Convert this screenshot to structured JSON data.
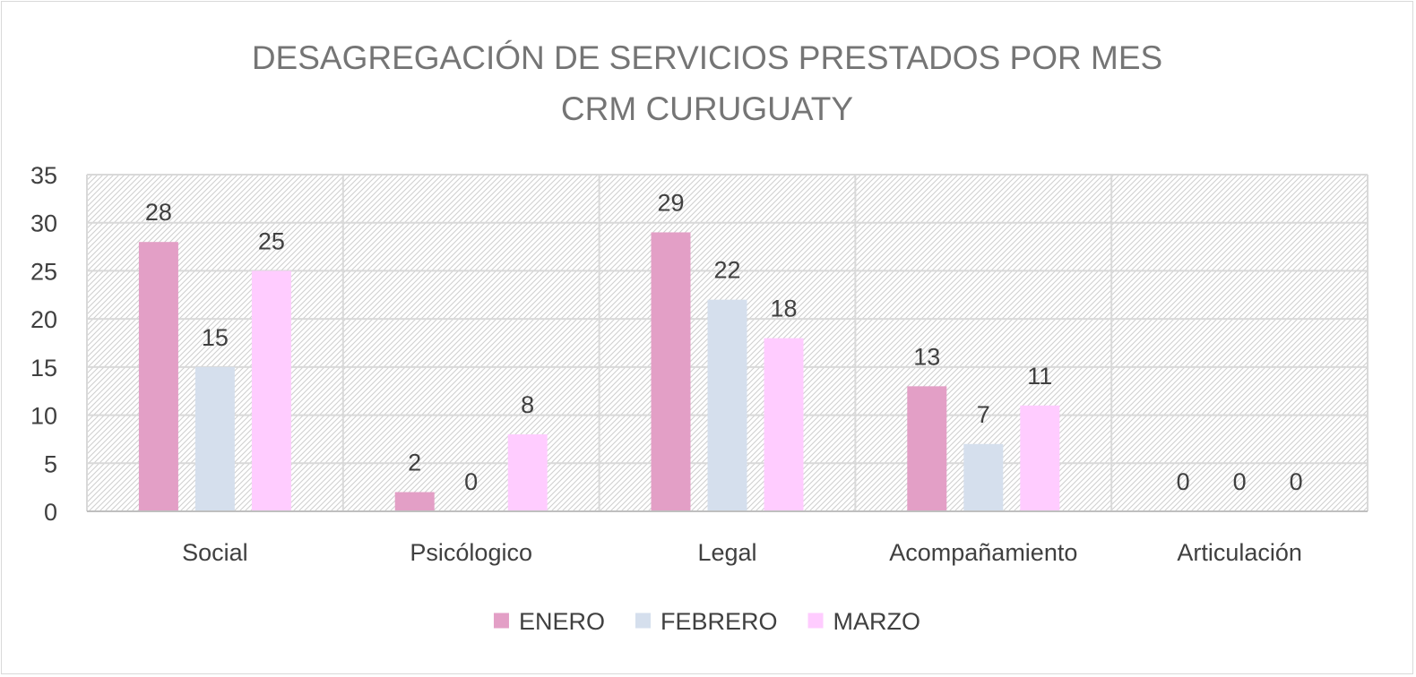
{
  "chart_data": {
    "type": "bar",
    "title": "DESAGREGACIÓN DE SERVICIOS PRESTADOS POR MES",
    "subtitle": "CRM CURUGUATY",
    "categories": [
      "Social",
      "Psicólogico",
      "Legal",
      "Acompañamiento",
      "Articulación"
    ],
    "series": [
      {
        "name": "ENERO",
        "color": "#e39fc6",
        "values": [
          28,
          2,
          29,
          13,
          0
        ]
      },
      {
        "name": "FEBRERO",
        "color": "#d5dfed",
        "values": [
          15,
          0,
          22,
          7,
          0
        ]
      },
      {
        "name": "MARZO",
        "color": "#ffccff",
        "values": [
          25,
          8,
          18,
          11,
          0
        ]
      }
    ],
    "ylim": [
      0,
      35
    ],
    "yticks": [
      0,
      5,
      10,
      15,
      20,
      25,
      30,
      35
    ],
    "grid": true,
    "legend_position": "bottom",
    "data_labels": true
  }
}
